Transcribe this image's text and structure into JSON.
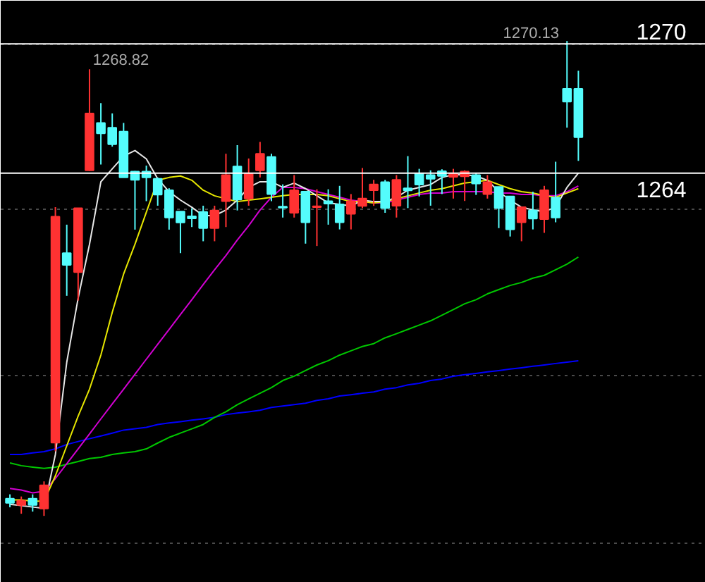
{
  "chart_data": {
    "type": "candlestick",
    "categories": [
      null,
      null,
      null,
      null,
      null,
      null,
      null,
      null,
      null,
      null,
      null,
      null,
      null,
      null,
      null,
      null,
      null,
      null,
      null,
      null,
      null,
      null,
      null,
      null,
      null,
      null,
      null,
      null,
      null,
      null,
      null,
      null,
      null,
      null,
      null,
      null,
      null,
      null,
      null,
      null,
      null,
      null,
      null,
      null,
      null,
      null,
      null,
      null,
      null,
      null,
      null
    ],
    "ohlc": [
      [
        1248.9,
        1249.1,
        1248.5,
        1248.7
      ],
      [
        1248.6,
        1249.0,
        1248.2,
        1248.8
      ],
      [
        1248.9,
        1249.1,
        1248.3,
        1248.6
      ],
      [
        1248.44,
        1249.7,
        1248.1,
        1249.52
      ],
      [
        1251.5,
        1262.42,
        1251.1,
        1261.98
      ],
      [
        1260.29,
        1261.61,
        1258.31,
        1259.74
      ],
      [
        1259.41,
        1262.37,
        1258.09,
        1262.37
      ],
      [
        1264.13,
        1268.82,
        1264.1,
        1266.77
      ],
      [
        1266.33,
        1267.25,
        1264.4,
        1265.85
      ],
      [
        1266.11,
        1266.77,
        1265.23,
        1265.34
      ],
      [
        1265.93,
        1266.33,
        1263.8,
        1263.8
      ],
      [
        1264.07,
        1264.1,
        1261.38,
        1263.69
      ],
      [
        1264.07,
        1264.35,
        1262.7,
        1263.8
      ],
      [
        1263.74,
        1263.8,
        1262.49,
        1263.0
      ],
      [
        1263.21,
        1263.3,
        1261.38,
        1261.94
      ],
      [
        1262.22,
        1262.22,
        1260.29,
        1261.71
      ],
      [
        1262.0,
        1262.37,
        1261.5,
        1261.9
      ],
      [
        1262.2,
        1262.49,
        1260.84,
        1261.45
      ],
      [
        1261.45,
        1262.49,
        1260.84,
        1262.27
      ],
      [
        1262.7,
        1264.9,
        1261.5,
        1263.91
      ],
      [
        1264.31,
        1265.3,
        1262.27,
        1262.77
      ],
      [
        1262.82,
        1264.68,
        1262.49,
        1263.96
      ],
      [
        1264.13,
        1265.45,
        1263.8,
        1264.9
      ],
      [
        1264.75,
        1264.9,
        1262.7,
        1263.03
      ],
      [
        1262.45,
        1263.48,
        1261.94,
        1262.4
      ],
      [
        1262.16,
        1263.91,
        1261.94,
        1263.21
      ],
      [
        1263.14,
        1263.14,
        1260.73,
        1261.72
      ],
      [
        1262.42,
        1263.25,
        1260.62,
        1262.46
      ],
      [
        1262.7,
        1263.25,
        1261.61,
        1262.59
      ],
      [
        1262.55,
        1263.41,
        1261.39,
        1261.72
      ],
      [
        1262.11,
        1263.03,
        1261.39,
        1262.7
      ],
      [
        1262.48,
        1264.24,
        1262.38,
        1262.82
      ],
      [
        1263.21,
        1263.69,
        1262.48,
        1263.48
      ],
      [
        1263.58,
        1263.69,
        1262.16,
        1262.38
      ],
      [
        1262.49,
        1263.91,
        1261.94,
        1263.69
      ],
      [
        1263.3,
        1264.79,
        1262.38,
        1263.2
      ],
      [
        1263.98,
        1264.2,
        1262.92,
        1263.47
      ],
      [
        1263.91,
        1264.13,
        1262.49,
        1263.74
      ],
      [
        1264.09,
        1264.18,
        1263.03,
        1263.87
      ],
      [
        1263.83,
        1264.2,
        1262.82,
        1263.98
      ],
      [
        1263.85,
        1264.13,
        1262.71,
        1264.07
      ],
      [
        1263.91,
        1264.02,
        1262.99,
        1263.52
      ],
      [
        1263.03,
        1263.91,
        1262.82,
        1263.58
      ],
      [
        1263.36,
        1263.36,
        1261.45,
        1262.38
      ],
      [
        1262.92,
        1262.92,
        1261.06,
        1261.39
      ],
      [
        1261.72,
        1262.42,
        1260.84,
        1262.42
      ],
      [
        1262.27,
        1263.14,
        1261.39,
        1261.89
      ],
      [
        1261.87,
        1263.41,
        1261.23,
        1263.21
      ],
      [
        1262.86,
        1264.53,
        1261.72,
        1261.94
      ],
      [
        1267.91,
        1270.13,
        1266.11,
        1267.32
      ],
      [
        1267.91,
        1268.75,
        1264.57,
        1265.67
      ]
    ],
    "colors": [
      "#54fcfc",
      "#ff3232",
      "#54fcfc",
      "#ff3232",
      "#ff3232",
      "#54fcfc",
      "#ff3232",
      "#ff3232",
      "#54fcfc",
      "#54fcfc",
      "#54fcfc",
      "#54fcfc",
      "#54fcfc",
      "#54fcfc",
      "#54fcfc",
      "#54fcfc",
      "#54fcfc",
      "#54fcfc",
      "#ff3232",
      "#ff3232",
      "#54fcfc",
      "#ff3232",
      "#ff3232",
      "#54fcfc",
      "#54fcfc",
      "#ff3232",
      "#54fcfc",
      "#ff3232",
      "#54fcfc",
      "#54fcfc",
      "#ff3232",
      "#ff3232",
      "#ff3232",
      "#54fcfc",
      "#ff3232",
      "#54fcfc",
      "#54fcfc",
      "#54fcfc",
      "#54fcfc",
      "#ff3232",
      "#ff3232",
      "#54fcfc",
      "#ff3232",
      "#54fcfc",
      "#54fcfc",
      "#ff3232",
      "#54fcfc",
      "#ff3232",
      "#54fcfc",
      "#54fcfc",
      "#54fcfc"
    ],
    "series": [
      {
        "type": "line",
        "color": "#0000ff",
        "values": [
          1250.95,
          1250.95,
          1251.02,
          1251.08,
          1251.21,
          1251.41,
          1251.55,
          1251.68,
          1251.81,
          1251.94,
          1252.08,
          1252.14,
          1252.21,
          1252.34,
          1252.41,
          1252.47,
          1252.54,
          1252.6,
          1252.67,
          1252.8,
          1252.87,
          1252.93,
          1253.0,
          1253.13,
          1253.2,
          1253.26,
          1253.33,
          1253.46,
          1253.53,
          1253.66,
          1253.72,
          1253.79,
          1253.85,
          1253.98,
          1254.05,
          1254.18,
          1254.25,
          1254.38,
          1254.45,
          1254.58,
          1254.65,
          1254.71,
          1254.78,
          1254.84,
          1254.91,
          1254.97,
          1255.04,
          1255.1,
          1255.17,
          1255.23,
          1255.3
        ]
      },
      {
        "type": "line",
        "color": "#00c800",
        "values": [
          1250.56,
          1250.43,
          1250.36,
          1250.3,
          1250.36,
          1250.49,
          1250.62,
          1250.76,
          1250.82,
          1250.95,
          1251.02,
          1251.08,
          1251.21,
          1251.48,
          1251.74,
          1251.94,
          1252.14,
          1252.34,
          1252.67,
          1252.93,
          1253.26,
          1253.53,
          1253.79,
          1254.05,
          1254.38,
          1254.58,
          1254.84,
          1255.1,
          1255.3,
          1255.56,
          1255.76,
          1255.96,
          1256.09,
          1256.36,
          1256.55,
          1256.75,
          1256.95,
          1257.15,
          1257.41,
          1257.67,
          1257.94,
          1258.13,
          1258.4,
          1258.6,
          1258.79,
          1258.93,
          1259.13,
          1259.26,
          1259.52,
          1259.78,
          1260.11
        ]
      },
      {
        "type": "line",
        "color": "#d200d2",
        "values": [
          1249.37,
          1249.3,
          1249.17,
          1249.24,
          1249.83,
          1250.52,
          1251.21,
          1251.9,
          1252.6,
          1253.29,
          1253.98,
          1254.67,
          1255.37,
          1256.06,
          1256.75,
          1257.44,
          1258.13,
          1258.83,
          1259.52,
          1260.18,
          1260.9,
          1261.56,
          1262.29,
          1262.88,
          1263.34,
          1263.34,
          1263.28,
          1263.14,
          1263.01,
          1262.88,
          1262.75,
          1262.68,
          1262.62,
          1262.62,
          1262.75,
          1262.88,
          1263.01,
          1263.08,
          1263.08,
          1263.14,
          1263.14,
          1263.14,
          1263.14,
          1263.08,
          1263.08,
          1263.01,
          1263.01,
          1262.95,
          1262.95,
          1263.14,
          1263.41
        ]
      },
      {
        "type": "line",
        "color": "#e6e600",
        "values": [
          1248.84,
          1248.84,
          1248.78,
          1248.78,
          1249.96,
          1251.35,
          1252.73,
          1253.98,
          1255.56,
          1257.54,
          1259.32,
          1260.7,
          1262.19,
          1263.67,
          1263.8,
          1263.87,
          1263.67,
          1263.21,
          1262.95,
          1262.81,
          1262.68,
          1262.75,
          1262.81,
          1262.88,
          1262.95,
          1263.01,
          1263.01,
          1263.01,
          1262.95,
          1262.81,
          1262.68,
          1262.68,
          1262.62,
          1262.68,
          1262.81,
          1262.95,
          1263.08,
          1263.21,
          1263.28,
          1263.41,
          1263.54,
          1263.6,
          1263.67,
          1263.47,
          1263.28,
          1263.14,
          1263.08,
          1262.95,
          1262.88,
          1263.08,
          1263.28
        ]
      },
      {
        "type": "line",
        "color": "#e6e6e6",
        "values": [
          1248.64,
          1248.58,
          1248.51,
          1248.45,
          1250.95,
          1255.23,
          1258.2,
          1260.7,
          1263.6,
          1264.2,
          1264.79,
          1265.05,
          1264.66,
          1263.74,
          1263.14,
          1262.75,
          1262.42,
          1262.03,
          1262.03,
          1262.29,
          1262.75,
          1263.34,
          1263.6,
          1263.6,
          1263.34,
          1263.54,
          1263.28,
          1262.95,
          1262.62,
          1262.55,
          1262.48,
          1262.75,
          1262.68,
          1262.68,
          1262.88,
          1263.21,
          1263.34,
          1263.47,
          1263.8,
          1263.93,
          1263.93,
          1263.87,
          1263.67,
          1263.14,
          1262.75,
          1262.42,
          1262.29,
          1262.22,
          1262.42,
          1263.34,
          1264.0
        ]
      }
    ],
    "ylim": [
      1245,
      1272
    ],
    "yticks": [
      {
        "value": 1270,
        "label": null
      },
      {
        "value": 1262.3,
        "label": null
      },
      {
        "value": 1254.6,
        "label": null
      },
      {
        "value": 1246.8,
        "label": null
      }
    ],
    "grid": "y",
    "tick_labels": false,
    "ref_lines": [
      {
        "axis": "y",
        "value": 1270,
        "label": "1270",
        "color": "#ffffff"
      },
      {
        "axis": "y",
        "value": 1264,
        "label": "1264",
        "color": "#ffffff"
      }
    ],
    "annotations": [
      "1268.82",
      "1270.13"
    ]
  }
}
